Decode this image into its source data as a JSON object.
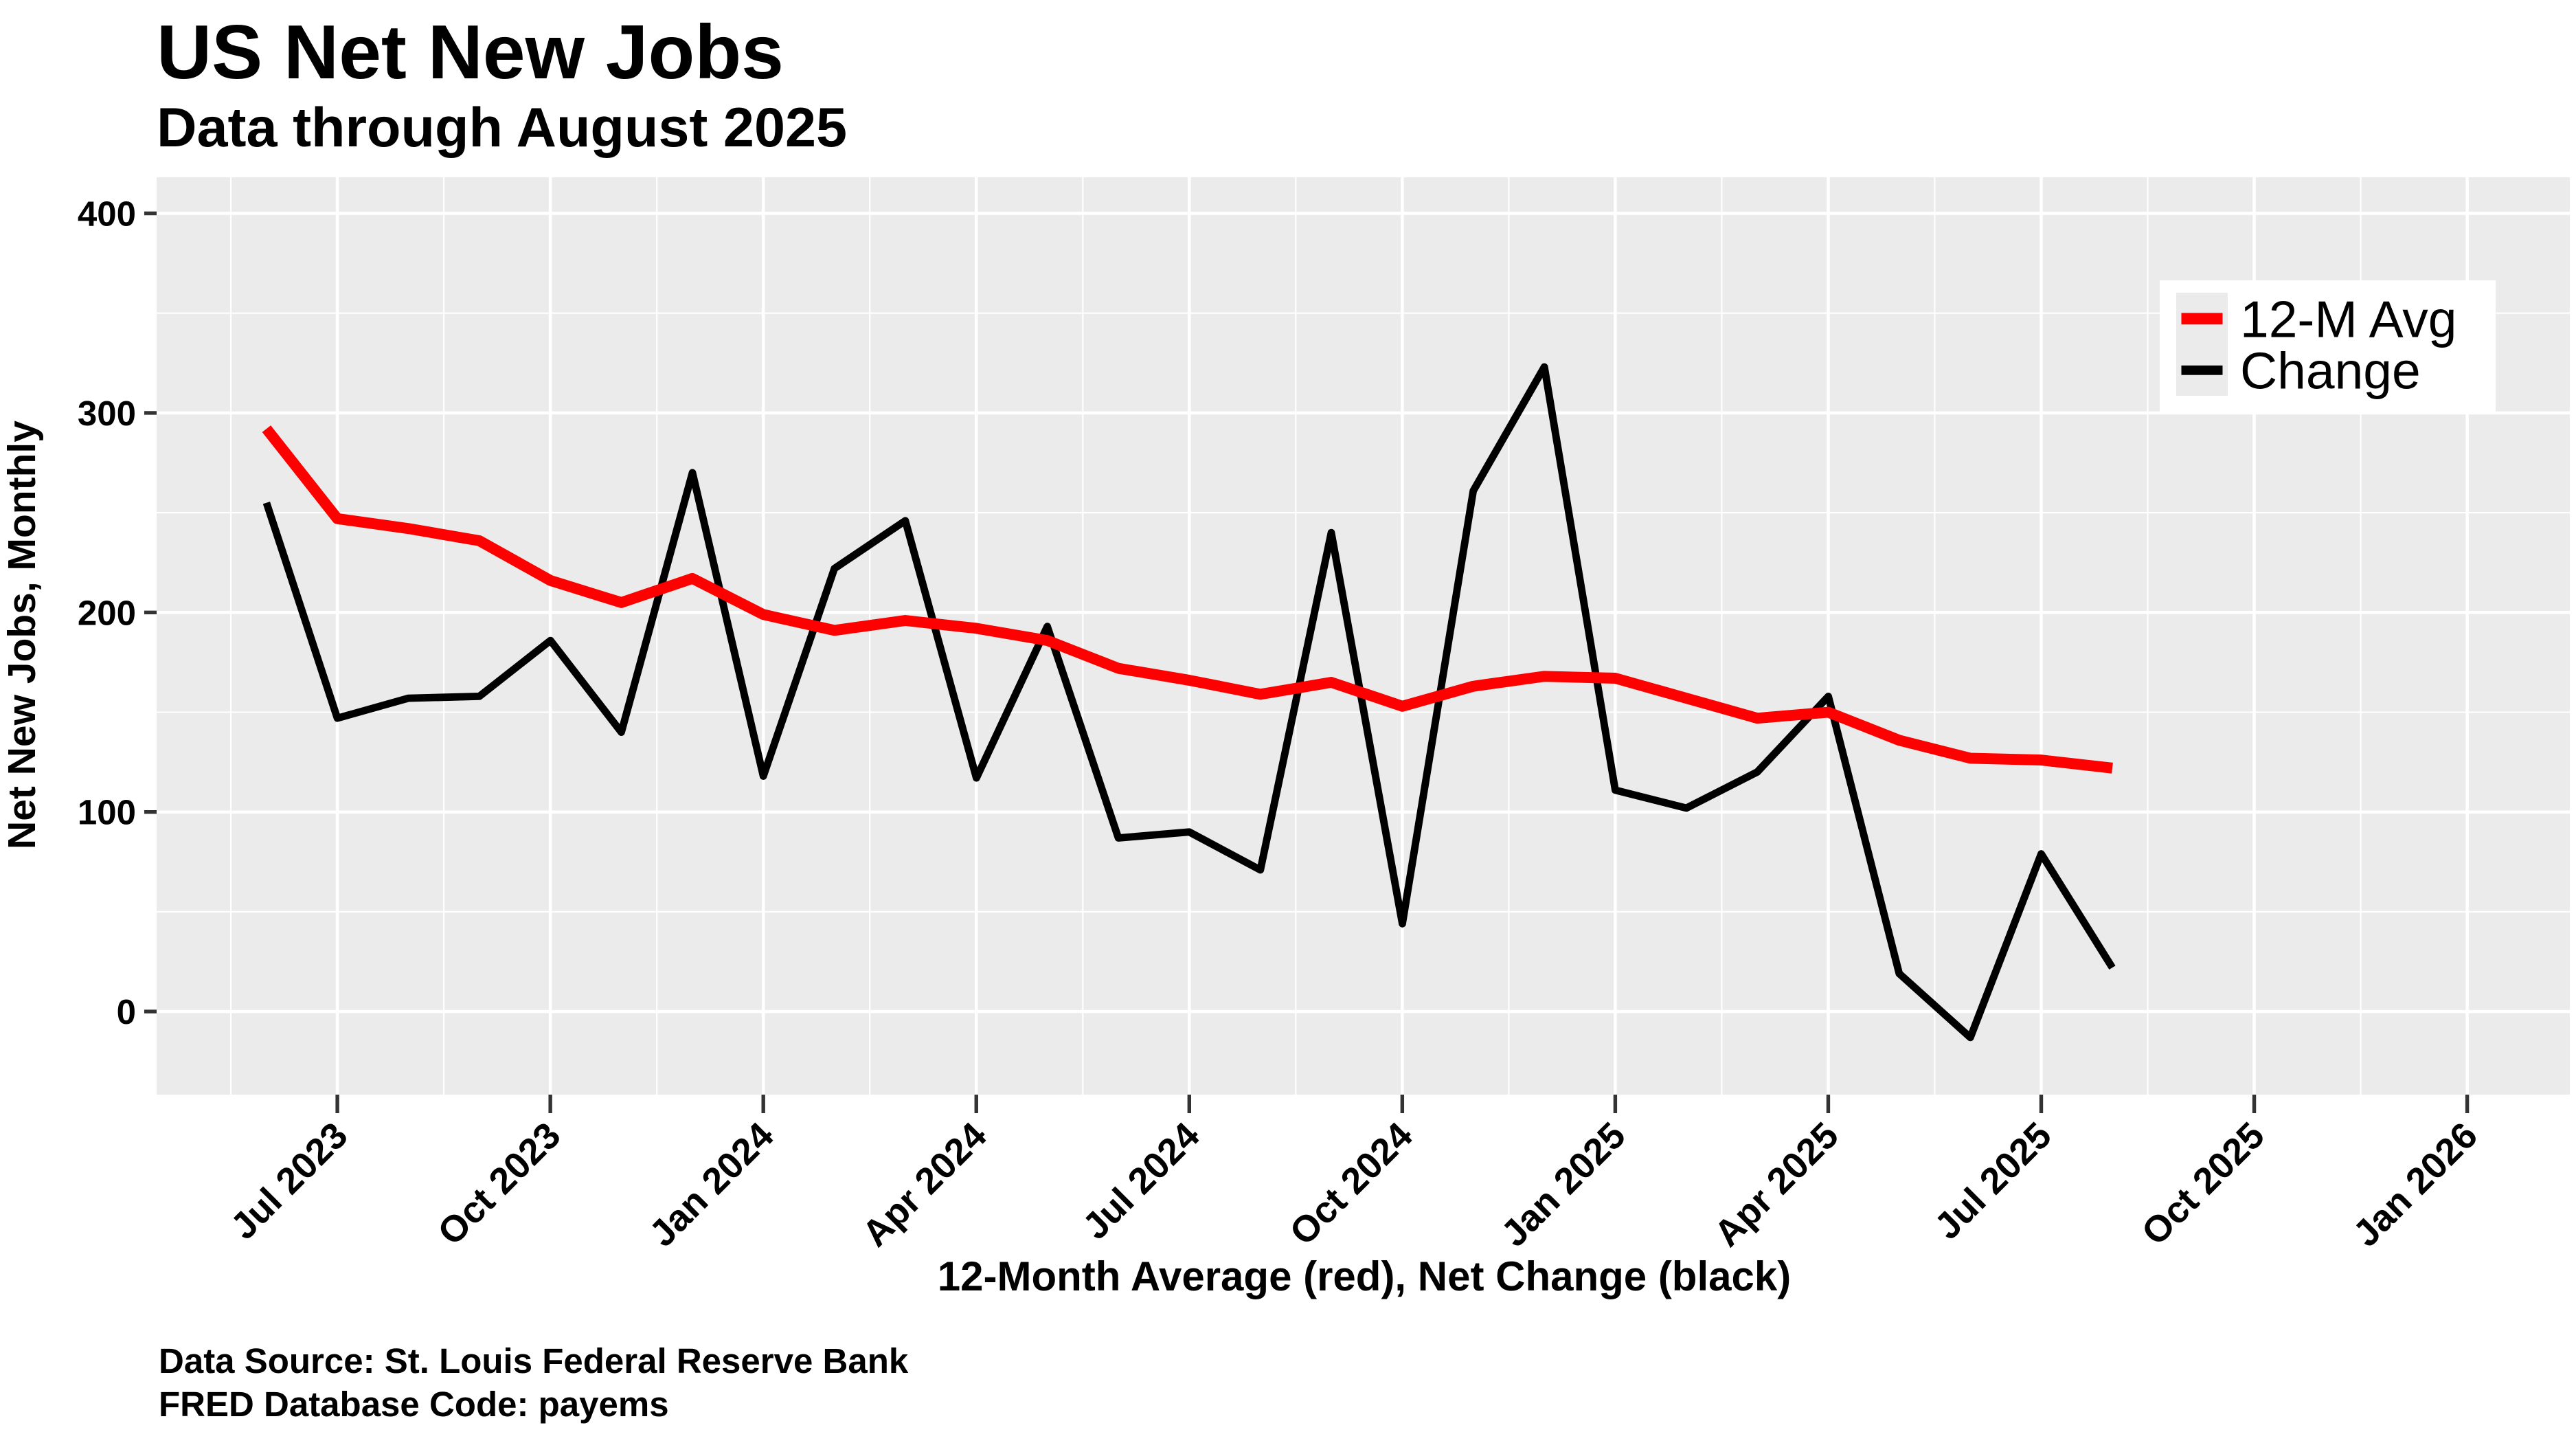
{
  "header": {
    "title": "US Net New Jobs",
    "subtitle": "Data through August 2025"
  },
  "footer": {
    "line1": "Data Source: St. Louis Federal Reserve Bank",
    "line2": "FRED Database Code: payems"
  },
  "legend": {
    "items": [
      {
        "label": "12-M Avg",
        "color": "#ff0000"
      },
      {
        "label": "Change",
        "color": "#000000"
      }
    ]
  },
  "chart_data": {
    "type": "line",
    "title": "US Net New Jobs",
    "subtitle": "Data through August 2025",
    "xlabel": "12-Month Average (red), Net Change (black)",
    "ylabel": "Net New Jobs, Monthly",
    "x": [
      "Jun 2023",
      "Jul 2023",
      "Aug 2023",
      "Sep 2023",
      "Oct 2023",
      "Nov 2023",
      "Dec 2023",
      "Jan 2024",
      "Feb 2024",
      "Mar 2024",
      "Apr 2024",
      "May 2024",
      "Jun 2024",
      "Jul 2024",
      "Aug 2024",
      "Sep 2024",
      "Oct 2024",
      "Nov 2024",
      "Dec 2024",
      "Jan 2025",
      "Feb 2025",
      "Mar 2025",
      "Apr 2025",
      "May 2025",
      "Jun 2025",
      "Jul 2025",
      "Aug 2025"
    ],
    "x_tick_labels": [
      "Jul 2023",
      "Oct 2023",
      "Jan 2024",
      "Apr 2024",
      "Jul 2024",
      "Oct 2024",
      "Jan 2025",
      "Apr 2025",
      "Jul 2025",
      "Oct 2025",
      "Jan 2026"
    ],
    "y_ticks": [
      0,
      100,
      200,
      300,
      400
    ],
    "ylim": [
      -42,
      418
    ],
    "grid": "on",
    "legend_position": "inside top-right",
    "panel_bg": "#ebebeb",
    "grid_color": "#ffffff",
    "series": [
      {
        "name": "Change",
        "color": "#000000",
        "values": [
          255,
          147,
          157,
          158,
          186,
          140,
          270,
          118,
          222,
          246,
          117,
          193,
          87,
          90,
          71,
          240,
          44,
          261,
          323,
          111,
          102,
          120,
          158,
          19,
          -13,
          79,
          22
        ]
      },
      {
        "name": "12-M Avg",
        "color": "#ff0000",
        "values": [
          292,
          247,
          242,
          236,
          216,
          205,
          217,
          199,
          191,
          196,
          192,
          186,
          172,
          166,
          159,
          165,
          153,
          163,
          168,
          167,
          157,
          147,
          150,
          136,
          127,
          126,
          122
        ]
      }
    ]
  }
}
